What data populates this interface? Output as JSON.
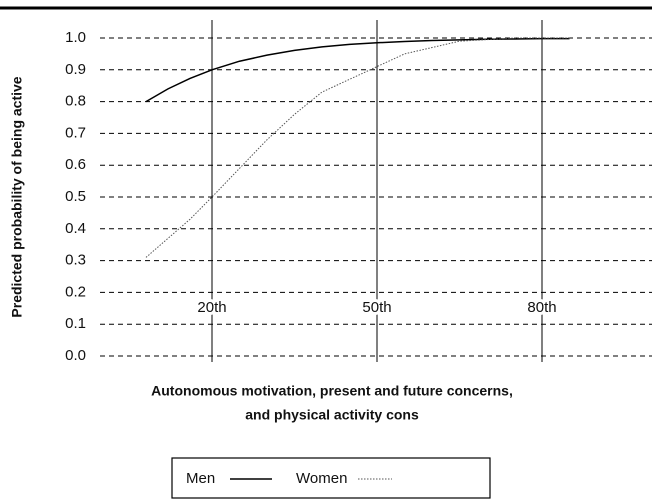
{
  "chart_data": {
    "type": "line",
    "ylabel": "Predicted probability of being active",
    "xlabel": [
      "Autonomous motivation, present and future concerns,",
      "and physical activity cons"
    ],
    "x": [
      8,
      12,
      16,
      20,
      25,
      30,
      35,
      40,
      45,
      50,
      55,
      60,
      65,
      70,
      75,
      80,
      85
    ],
    "series": [
      {
        "name": "Men",
        "color": "#000000",
        "style": "solid",
        "values": [
          0.8,
          0.84,
          0.873,
          0.9,
          0.927,
          0.946,
          0.961,
          0.972,
          0.98,
          0.985,
          0.989,
          0.992,
          0.994,
          0.996,
          0.997,
          0.998,
          0.998
        ]
      },
      {
        "name": "Women",
        "color": "#555555",
        "style": "dotted",
        "values": [
          0.31,
          0.37,
          0.43,
          0.5,
          0.59,
          0.68,
          0.76,
          0.83,
          0.87,
          0.91,
          0.95,
          0.97,
          0.99,
          0.995,
          1.0,
          1.0,
          1.0
        ]
      }
    ],
    "xlim": [
      0,
      100
    ],
    "xticks": [
      {
        "value": 20,
        "label": "20th"
      },
      {
        "value": 50,
        "label": "50th"
      },
      {
        "value": 80,
        "label": "80th"
      }
    ],
    "ylim": [
      0,
      1
    ],
    "yticks": [
      {
        "value": 0,
        "label": "0.0"
      },
      0.1,
      0.2,
      0.3,
      0.4,
      0.5,
      0.6,
      0.7,
      0.8,
      0.9,
      {
        "value": 1,
        "label": "1.0"
      }
    ],
    "grid": true,
    "legend": "bottom"
  }
}
